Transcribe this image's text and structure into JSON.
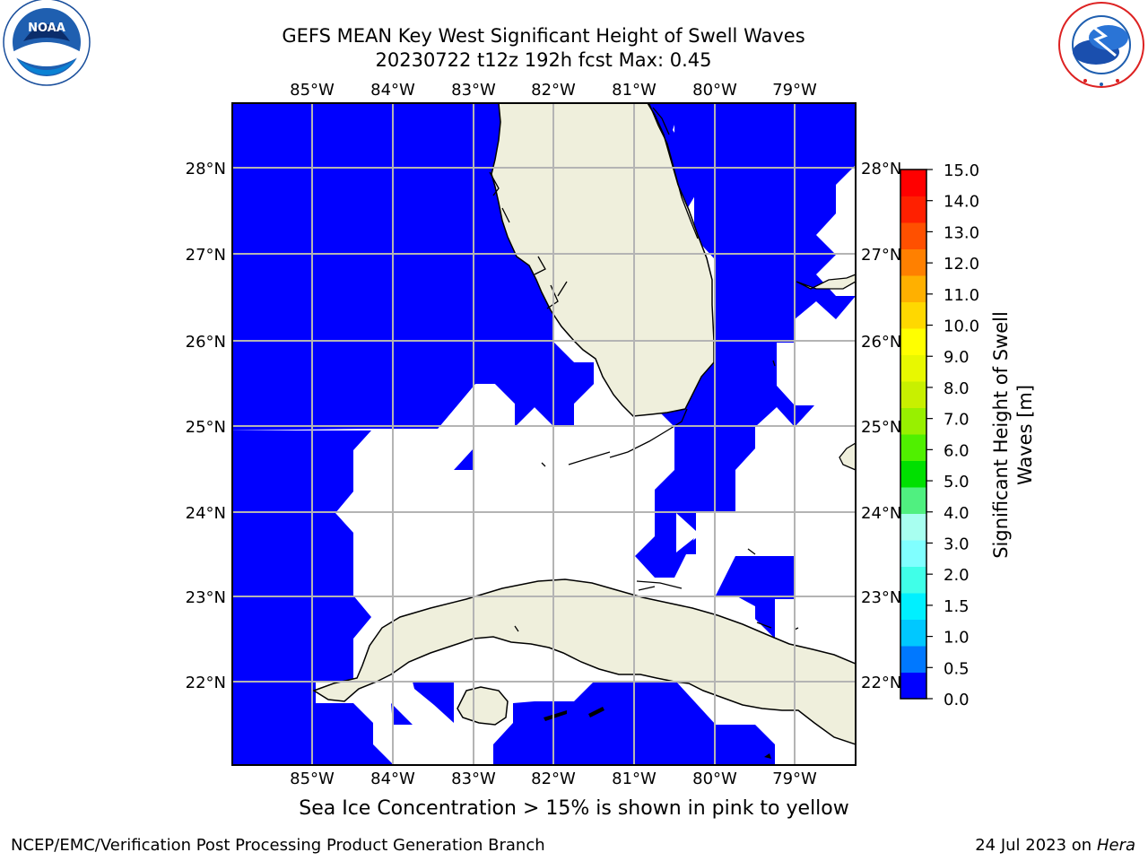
{
  "header": {
    "title_line1": "GEFS MEAN Key West Significant Height of Swell Waves",
    "title_line2": "20230722 t12z 192h fcst   Max: 0.45"
  },
  "logos": {
    "left": "NATIONAL OCEANIC AND ATMOSPHERIC ADMINISTRATION · U.S. DEPARTMENT OF COMMERCE · NOAA",
    "right": "NATIONAL WEATHER SERVICE"
  },
  "map": {
    "lon_labels": [
      "85°W",
      "84°W",
      "83°W",
      "82°W",
      "81°W",
      "80°W",
      "79°W"
    ],
    "lat_labels": [
      "28°N",
      "27°N",
      "26°N",
      "25°N",
      "24°N",
      "23°N",
      "22°N"
    ],
    "lon_range": [
      -86.0,
      -78.25
    ],
    "lat_range": [
      21.1,
      28.75
    ],
    "ocean_color": "#0000ff",
    "land_color": "#efefdc",
    "nodata_color": "#ffffff"
  },
  "colorbar": {
    "label": "Significant Height of Swell Waves [m]",
    "label_line1": "Significant Height of Swell",
    "label_line2": "Waves [m]",
    "ticks": [
      "15.0",
      "14.0",
      "13.0",
      "12.0",
      "11.0",
      "10.0",
      "9.0",
      "8.0",
      "7.0",
      "6.0",
      "5.0",
      "4.0",
      "3.0",
      "2.0",
      "1.5",
      "1.0",
      "0.5",
      "0.0"
    ],
    "colors_bottom_to_top": [
      "#0000ff",
      "#0078ff",
      "#00c8ff",
      "#00f0ff",
      "#40ffe8",
      "#80ffff",
      "#a8fff0",
      "#50f080",
      "#00e000",
      "#50f000",
      "#98f000",
      "#c8f000",
      "#e8f800",
      "#ffff00",
      "#ffd800",
      "#ffb000",
      "#ff8000",
      "#ff5000",
      "#ff2000",
      "#ff0000"
    ]
  },
  "note": "Sea Ice Concentration > 15% is shown in pink to yellow",
  "footer": {
    "left": "NCEP/EMC/Verification Post Processing Product Generation Branch",
    "date": "24 Jul 2023 on",
    "machine": "Hera"
  }
}
